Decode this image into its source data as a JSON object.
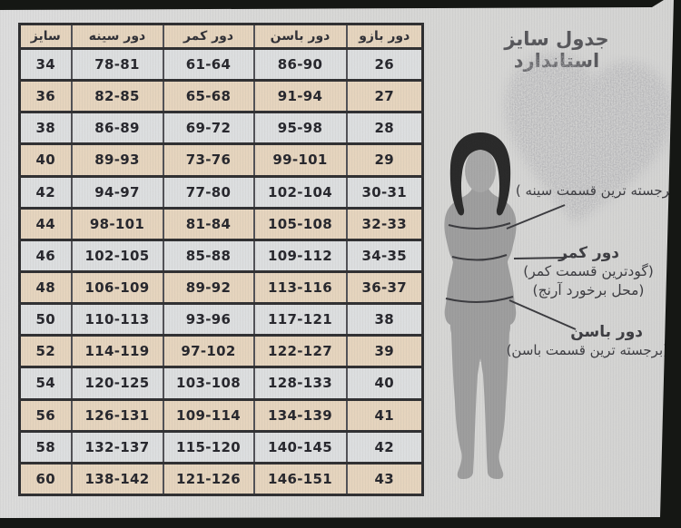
{
  "title": "جدول سایز استاندارد",
  "table": {
    "headers": [
      "سایز",
      "دور سینه",
      "دور کمر",
      "دور باسن",
      "دور بازو"
    ],
    "rows": [
      [
        "34",
        "78-81",
        "61-64",
        "86-90",
        "26"
      ],
      [
        "36",
        "82-85",
        "65-68",
        "91-94",
        "27"
      ],
      [
        "38",
        "86-89",
        "69-72",
        "95-98",
        "28"
      ],
      [
        "40",
        "89-93",
        "73-76",
        "99-101",
        "29"
      ],
      [
        "42",
        "94-97",
        "77-80",
        "102-104",
        "30-31"
      ],
      [
        "44",
        "98-101",
        "81-84",
        "105-108",
        "32-33"
      ],
      [
        "46",
        "102-105",
        "85-88",
        "109-112",
        "34-35"
      ],
      [
        "48",
        "106-109",
        "89-92",
        "113-116",
        "36-37"
      ],
      [
        "50",
        "110-113",
        "93-96",
        "117-121",
        "38"
      ],
      [
        "52",
        "114-119",
        "97-102",
        "122-127",
        "39"
      ],
      [
        "54",
        "120-125",
        "103-108",
        "128-133",
        "40"
      ],
      [
        "56",
        "126-131",
        "109-114",
        "134-139",
        "41"
      ],
      [
        "58",
        "132-137",
        "115-120",
        "140-145",
        "42"
      ],
      [
        "60",
        "138-142",
        "121-126",
        "146-151",
        "43"
      ]
    ]
  },
  "diagram": {
    "bust_note": "(برجسته ترین قسمت سینه )",
    "waist_label": "دور کمر",
    "waist_note1": "(گودترین قسمت کمر)",
    "waist_note2": "(محل برخورد آرنج)",
    "hip_label": "دور باسن",
    "hip_note": "(برجسته ترین قسمت باسن)"
  },
  "colors": {
    "row_beige": "#e7d6bf",
    "row_gray": "#dee0e1",
    "table_border": "#2c2c2e",
    "photo_background": "#d9d9d7",
    "frame_dark": "#151714",
    "silhouette_body": "#9e9e9e",
    "silhouette_hair": "#282828",
    "heart_gray": "#8f8f8f"
  }
}
